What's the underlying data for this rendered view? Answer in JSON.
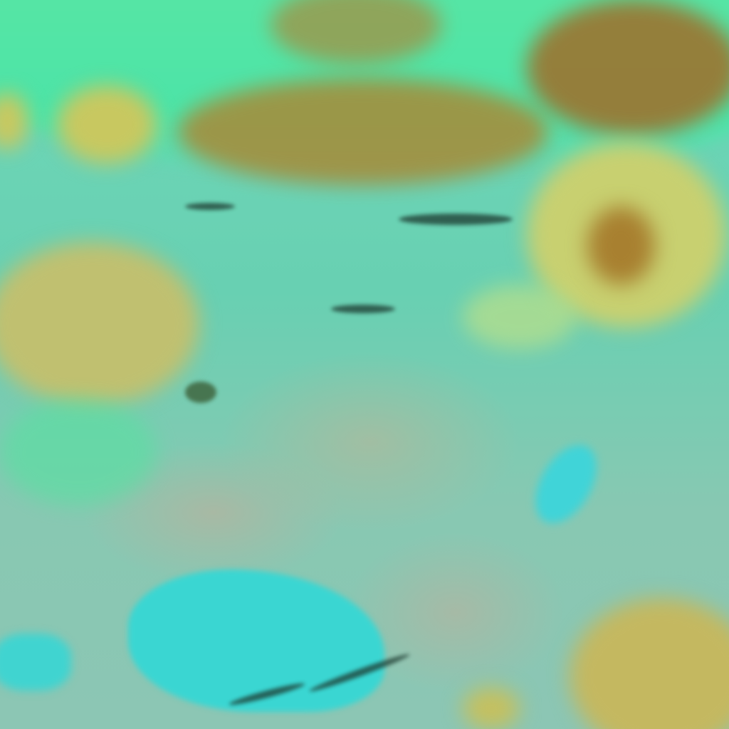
{
  "image": {
    "kind": "false-color satellite scene",
    "colors": {
      "cloud_cyan": "#62d8c0",
      "desert_tan": "#c4b890",
      "vegetation_yellow": "#c8d070",
      "mountain_brown": "#9a6a30",
      "water_cyan": "#38d8d0",
      "snow_green": "#40f0a0"
    }
  }
}
